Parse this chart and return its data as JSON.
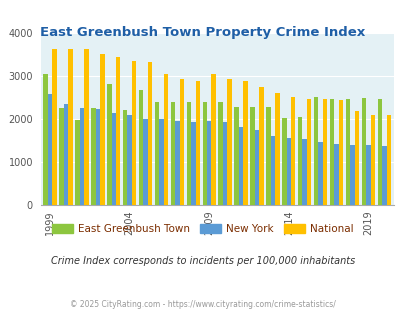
{
  "title": "East Greenbush Town Property Crime Index",
  "years": [
    1999,
    2000,
    2001,
    2002,
    2003,
    2004,
    2005,
    2006,
    2007,
    2008,
    2009,
    2010,
    2011,
    2012,
    2013,
    2014,
    2015,
    2016,
    2017,
    2018,
    2019,
    2020
  ],
  "east_greenbush": [
    3040,
    2250,
    1980,
    2250,
    2800,
    2200,
    2680,
    2380,
    2390,
    2400,
    2390,
    2390,
    2280,
    2280,
    2280,
    2010,
    2040,
    2500,
    2470,
    2470,
    2490,
    2460
  ],
  "new_york": [
    2580,
    2350,
    2260,
    2240,
    2130,
    2080,
    2000,
    1990,
    1940,
    1930,
    1940,
    1930,
    1820,
    1730,
    1590,
    1560,
    1520,
    1460,
    1420,
    1390,
    1380,
    1360
  ],
  "national": [
    3620,
    3630,
    3620,
    3520,
    3450,
    3340,
    3320,
    3050,
    2930,
    2890,
    3050,
    2930,
    2890,
    2740,
    2600,
    2510,
    2470,
    2450,
    2440,
    2180,
    2100,
    2090
  ],
  "colors": {
    "east_greenbush": "#8dc63f",
    "new_york": "#5b9bd5",
    "national": "#ffc000"
  },
  "ylim": [
    0,
    4000
  ],
  "yticks": [
    0,
    1000,
    2000,
    3000,
    4000
  ],
  "xtick_years": [
    1999,
    2004,
    2009,
    2014,
    2019
  ],
  "bg_color": "#e4f1f5",
  "plot_bg_color": "#e4f1f5",
  "title_color": "#1f5fa6",
  "legend_label_color": "#7b2d00",
  "legend_labels": [
    "East Greenbush Town",
    "New York",
    "National"
  ],
  "footnote1": "Crime Index corresponds to incidents per 100,000 inhabitants",
  "footnote2": "© 2025 CityRating.com - https://www.cityrating.com/crime-statistics/",
  "bar_width": 0.28
}
